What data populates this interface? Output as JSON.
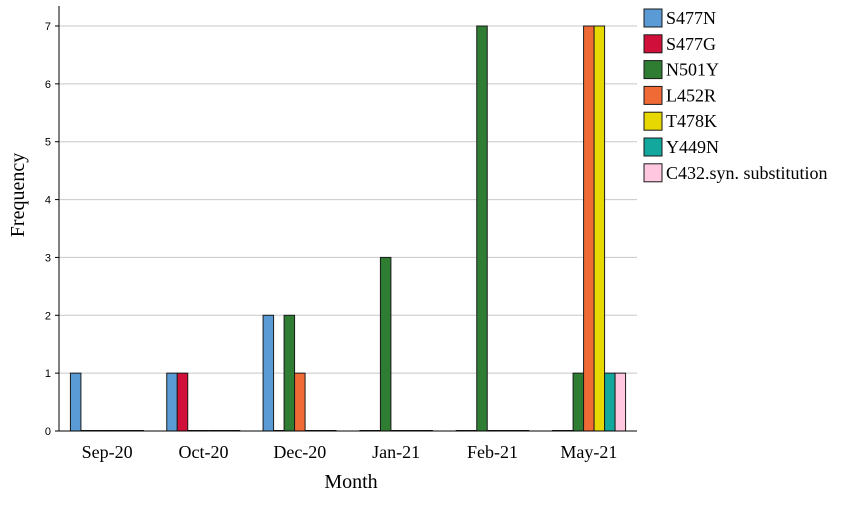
{
  "chart_data": {
    "type": "bar",
    "xlabel": "Month",
    "ylabel": "Frequency",
    "ylim": [
      0,
      7
    ],
    "yticks": [
      0,
      1,
      2,
      3,
      4,
      5,
      6,
      7
    ],
    "categories": [
      "Sep-20",
      "Oct-20",
      "Dec-20",
      "Jan-21",
      "Feb-21",
      "May-21"
    ],
    "series": [
      {
        "name": "S477N",
        "color": "#5b9bd5",
        "values": [
          1,
          1,
          2,
          0,
          0,
          0
        ]
      },
      {
        "name": "S477G",
        "color": "#d0103a",
        "values": [
          0,
          1,
          0,
          0,
          0,
          0
        ]
      },
      {
        "name": "N501Y",
        "color": "#2e7d32",
        "values": [
          0,
          0,
          2,
          3,
          7,
          1
        ]
      },
      {
        "name": "L452R",
        "color": "#f06a35",
        "values": [
          0,
          0,
          1,
          0,
          0,
          7
        ]
      },
      {
        "name": "T478K",
        "color": "#e6d800",
        "values": [
          0,
          0,
          0,
          0,
          0,
          7
        ]
      },
      {
        "name": "Y449N",
        "color": "#13a89e",
        "values": [
          0,
          0,
          0,
          0,
          0,
          1
        ]
      },
      {
        "name": "C432.syn. substitution",
        "color": "#ffc8e0",
        "values": [
          0,
          0,
          0,
          0,
          0,
          1
        ]
      }
    ],
    "grid": true,
    "legend": "top-right"
  }
}
